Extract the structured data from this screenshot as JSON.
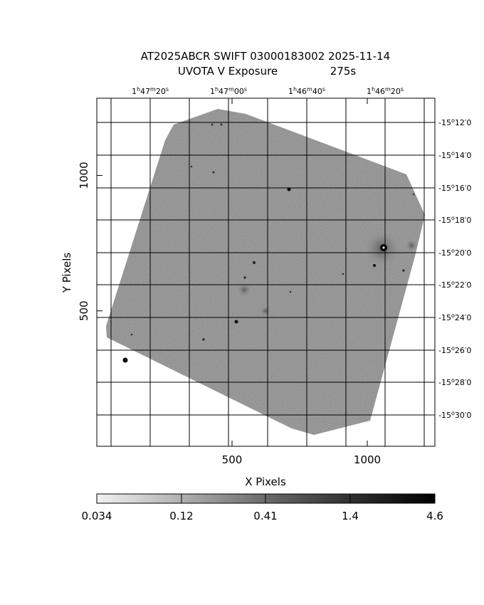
{
  "title": {
    "line1": "AT2025ABCR SWIFT 03000183002 2025-11-14",
    "line2_left": "UVOTA V Exposure",
    "line2_right": "275s"
  },
  "axes": {
    "xlabel": "X Pixels",
    "ylabel": "Y Pixels",
    "x_ticks": [
      {
        "value": 500,
        "label": "500"
      },
      {
        "value": 1000,
        "label": "1000"
      }
    ],
    "y_ticks": [
      {
        "value": 500,
        "label": "500"
      },
      {
        "value": 1000,
        "label": "1000"
      }
    ],
    "x_range": [
      0,
      1250
    ],
    "y_range": [
      0,
      1285
    ],
    "ra_ticks": [
      {
        "h": "1",
        "m": "47",
        "s": "20"
      },
      {
        "h": "1",
        "m": "47",
        "s": "00"
      },
      {
        "h": "1",
        "m": "46",
        "s": "40"
      },
      {
        "h": "1",
        "m": "46",
        "s": "20"
      }
    ],
    "dec_ticks": [
      {
        "deg": "-15",
        "min": "12",
        "sec": "0"
      },
      {
        "deg": "-15",
        "min": "14",
        "sec": "0"
      },
      {
        "deg": "-15",
        "min": "16",
        "sec": "0"
      },
      {
        "deg": "-15",
        "min": "18",
        "sec": "0"
      },
      {
        "deg": "-15",
        "min": "20",
        "sec": "0"
      },
      {
        "deg": "-15",
        "min": "22",
        "sec": "0"
      },
      {
        "deg": "-15",
        "min": "24",
        "sec": "0"
      },
      {
        "deg": "-15",
        "min": "26",
        "sec": "0"
      },
      {
        "deg": "-15",
        "min": "28",
        "sec": "0"
      },
      {
        "deg": "-15",
        "min": "30",
        "sec": "0"
      }
    ]
  },
  "colorbar": {
    "labels": [
      "0.034",
      "0.12",
      "0.41",
      "1.4",
      "4.6"
    ],
    "scale": "log",
    "colormap": "grayscale-inverted"
  },
  "colors": {
    "background": "#ffffff",
    "ink": "#000000",
    "field": "#a6a6a6"
  }
}
